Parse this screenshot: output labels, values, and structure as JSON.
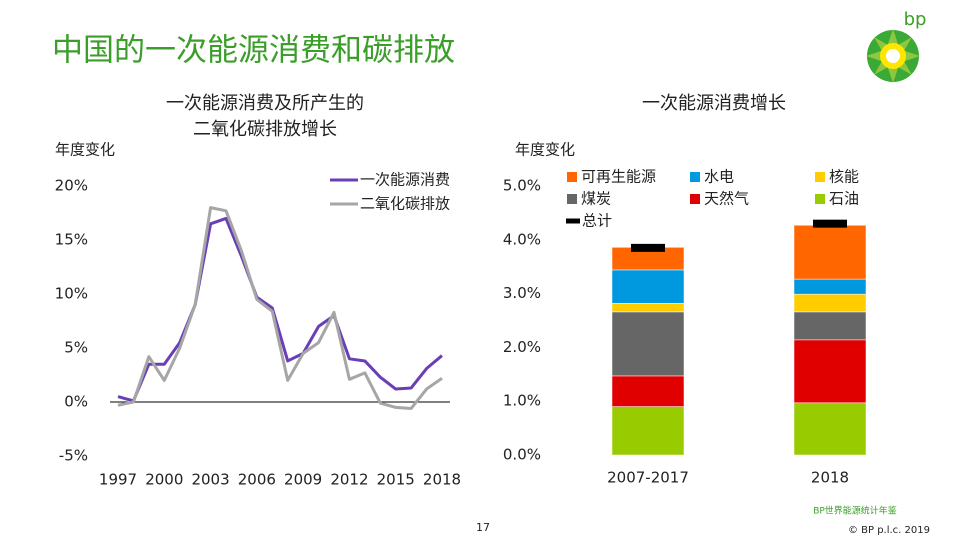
{
  "slide": {
    "title": "中国的一次能源消费和碳排放",
    "logo_text": "bp",
    "source": "BP世界能源统计年鉴",
    "page": "17",
    "copyright": "© BP p.l.c. 2019"
  },
  "chart_data": [
    {
      "type": "line",
      "title": [
        "一次能源消费及所产生的",
        "二氧化碳排放增长"
      ],
      "y_label": "年度变化",
      "x": [
        1997,
        1998,
        1999,
        2000,
        2001,
        2002,
        2003,
        2004,
        2005,
        2006,
        2007,
        2008,
        2009,
        2010,
        2011,
        2012,
        2013,
        2014,
        2015,
        2016,
        2017,
        2018
      ],
      "xlim": [
        1997,
        2018
      ],
      "xticks": [
        1997,
        2000,
        2003,
        2006,
        2009,
        2012,
        2015,
        2018
      ],
      "ylim": [
        -5,
        20
      ],
      "yticks": [
        {
          "value": -5,
          "label": "-5%"
        },
        {
          "value": 0,
          "label": "0%"
        },
        {
          "value": 5,
          "label": "5%"
        },
        {
          "value": 10,
          "label": "10%"
        },
        {
          "value": 15,
          "label": "15%"
        },
        {
          "value": 20,
          "label": "20%"
        }
      ],
      "series": [
        {
          "name": "一次能源消费",
          "color": "#6a3fb5",
          "values": [
            0.5,
            0.1,
            3.5,
            3.5,
            5.5,
            9,
            16.5,
            17,
            13.5,
            9.7,
            8.7,
            3.8,
            4.5,
            7,
            8,
            4,
            3.8,
            2.3,
            1.2,
            1.3,
            3.1,
            4.3
          ]
        },
        {
          "name": "二氧化碳排放",
          "color": "#a6a6a6",
          "values": [
            -0.3,
            0,
            4.2,
            2,
            5,
            9,
            18,
            17.7,
            14,
            9.5,
            8.4,
            2,
            4.5,
            5.5,
            8.3,
            2.1,
            2.7,
            -0.1,
            -0.5,
            -0.6,
            1.2,
            2.2
          ]
        }
      ]
    },
    {
      "type": "bar",
      "stacked": true,
      "title": "一次能源消费增长",
      "y_label": "年度变化",
      "categories": [
        "2007-2017",
        "2018"
      ],
      "ylim": [
        0,
        5
      ],
      "yticks": [
        {
          "value": 0,
          "label": "0.0%"
        },
        {
          "value": 1,
          "label": "1.0%"
        },
        {
          "value": 2,
          "label": "2.0%"
        },
        {
          "value": 3,
          "label": "3.0%"
        },
        {
          "value": 4,
          "label": "4.0%"
        },
        {
          "value": 5,
          "label": "5.0%"
        }
      ],
      "series": [
        {
          "name": "石油",
          "color": "#99cc00",
          "values": [
            0.9,
            0.97
          ]
        },
        {
          "name": "天然气",
          "color": "#e00000",
          "values": [
            0.57,
            1.17
          ]
        },
        {
          "name": "煤炭",
          "color": "#666666",
          "values": [
            1.19,
            0.52
          ]
        },
        {
          "name": "核能",
          "color": "#ffcc00",
          "values": [
            0.16,
            0.33
          ]
        },
        {
          "name": "水电",
          "color": "#0099e0",
          "values": [
            0.62,
            0.28
          ]
        },
        {
          "name": "可再生能源",
          "color": "#ff6600",
          "values": [
            0.42,
            1.0
          ]
        }
      ],
      "totals": {
        "name": "总计",
        "color": "#000000",
        "values": [
          3.85,
          4.3
        ]
      }
    }
  ]
}
